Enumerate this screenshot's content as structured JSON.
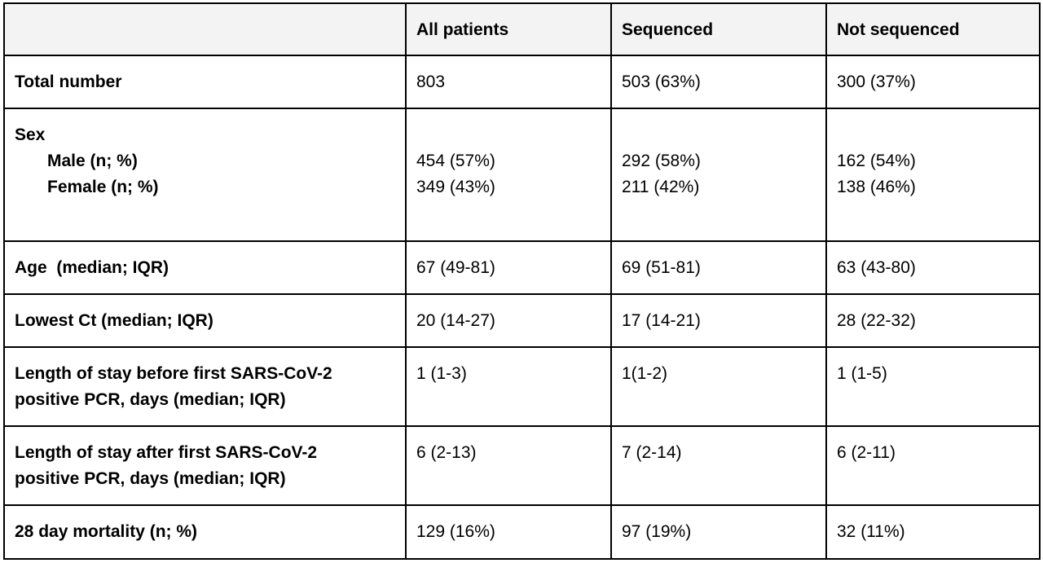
{
  "header": {
    "col0": "",
    "col1": "All patients",
    "col2": "Sequenced",
    "col3": "Not sequenced"
  },
  "rows": {
    "total": {
      "label": "Total number",
      "all": "803",
      "sequenced": "503 (63%)",
      "not_sequenced": "300 (37%)"
    },
    "sex": {
      "label": "Sex",
      "male_label": "Male (n; %)",
      "female_label": "Female (n; %)",
      "all_male": "454 (57%)",
      "all_female": "349 (43%)",
      "sequenced_male": "292 (58%)",
      "sequenced_female": "211 (42%)",
      "not_sequenced_male": "162 (54%)",
      "not_sequenced_female": "138 (46%)"
    },
    "age": {
      "label": "Age  (median; IQR)",
      "all": "67 (49-81)",
      "sequenced": "69 (51-81)",
      "not_sequenced": "63 (43-80)"
    },
    "lowest_ct": {
      "label": "Lowest Ct (median; IQR)",
      "all": "20 (14-27)",
      "sequenced": "17 (14-21)",
      "not_sequenced": "28 (22-32)"
    },
    "los_before": {
      "label_line1": "Length of stay before first SARS-CoV-2",
      "label_line2": "positive PCR, days (median; IQR)",
      "all": "1 (1-3)",
      "sequenced": "1(1-2)",
      "not_sequenced": "1 (1-5)"
    },
    "los_after": {
      "label_line1": "Length of stay after first SARS-CoV-2",
      "label_line2": "positive PCR, days (median; IQR)",
      "all": "6 (2-13)",
      "sequenced": "7 (2-14)",
      "not_sequenced": "6 (2-11)"
    },
    "mortality": {
      "label": "28 day mortality (n; %)",
      "all": "129 (16%)",
      "sequenced": "97 (19%)",
      "not_sequenced": "32 (11%)"
    }
  },
  "colors": {
    "header_background": "#f3f3f3",
    "border": "#000000",
    "text": "#000000"
  }
}
